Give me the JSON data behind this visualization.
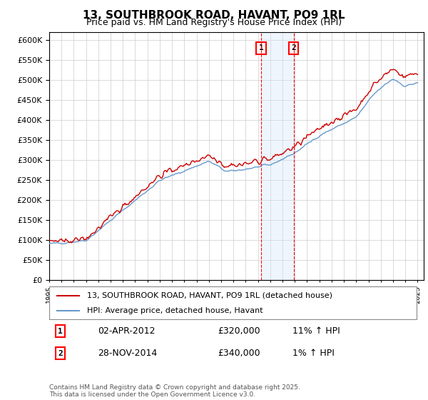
{
  "title": "13, SOUTHBROOK ROAD, HAVANT, PO9 1RL",
  "subtitle": "Price paid vs. HM Land Registry's House Price Index (HPI)",
  "ylabel_ticks": [
    "£0",
    "£50K",
    "£100K",
    "£150K",
    "£200K",
    "£250K",
    "£300K",
    "£350K",
    "£400K",
    "£450K",
    "£500K",
    "£550K",
    "£600K"
  ],
  "ytick_values": [
    0,
    50000,
    100000,
    150000,
    200000,
    250000,
    300000,
    350000,
    400000,
    450000,
    500000,
    550000,
    600000
  ],
  "x_start_year": 1995,
  "x_end_year": 2025,
  "legend_line1": "13, SOUTHBROOK ROAD, HAVANT, PO9 1RL (detached house)",
  "legend_line2": "HPI: Average price, detached house, Havant",
  "transaction1_label": "1",
  "transaction1_date": "02-APR-2012",
  "transaction1_price": "£320,000",
  "transaction1_hpi": "11% ↑ HPI",
  "transaction2_label": "2",
  "transaction2_date": "28-NOV-2014",
  "transaction2_price": "£340,000",
  "transaction2_hpi": "1% ↑ HPI",
  "footnote": "Contains HM Land Registry data © Crown copyright and database right 2025.\nThis data is licensed under the Open Government Licence v3.0.",
  "line_color_red": "#cc0000",
  "line_color_blue": "#6699cc",
  "shaded_color": "#d0e4f7",
  "transaction1_x": 2012.25,
  "transaction2_x": 2014.9,
  "grid_color": "#cccccc",
  "background_color": "#ffffff"
}
